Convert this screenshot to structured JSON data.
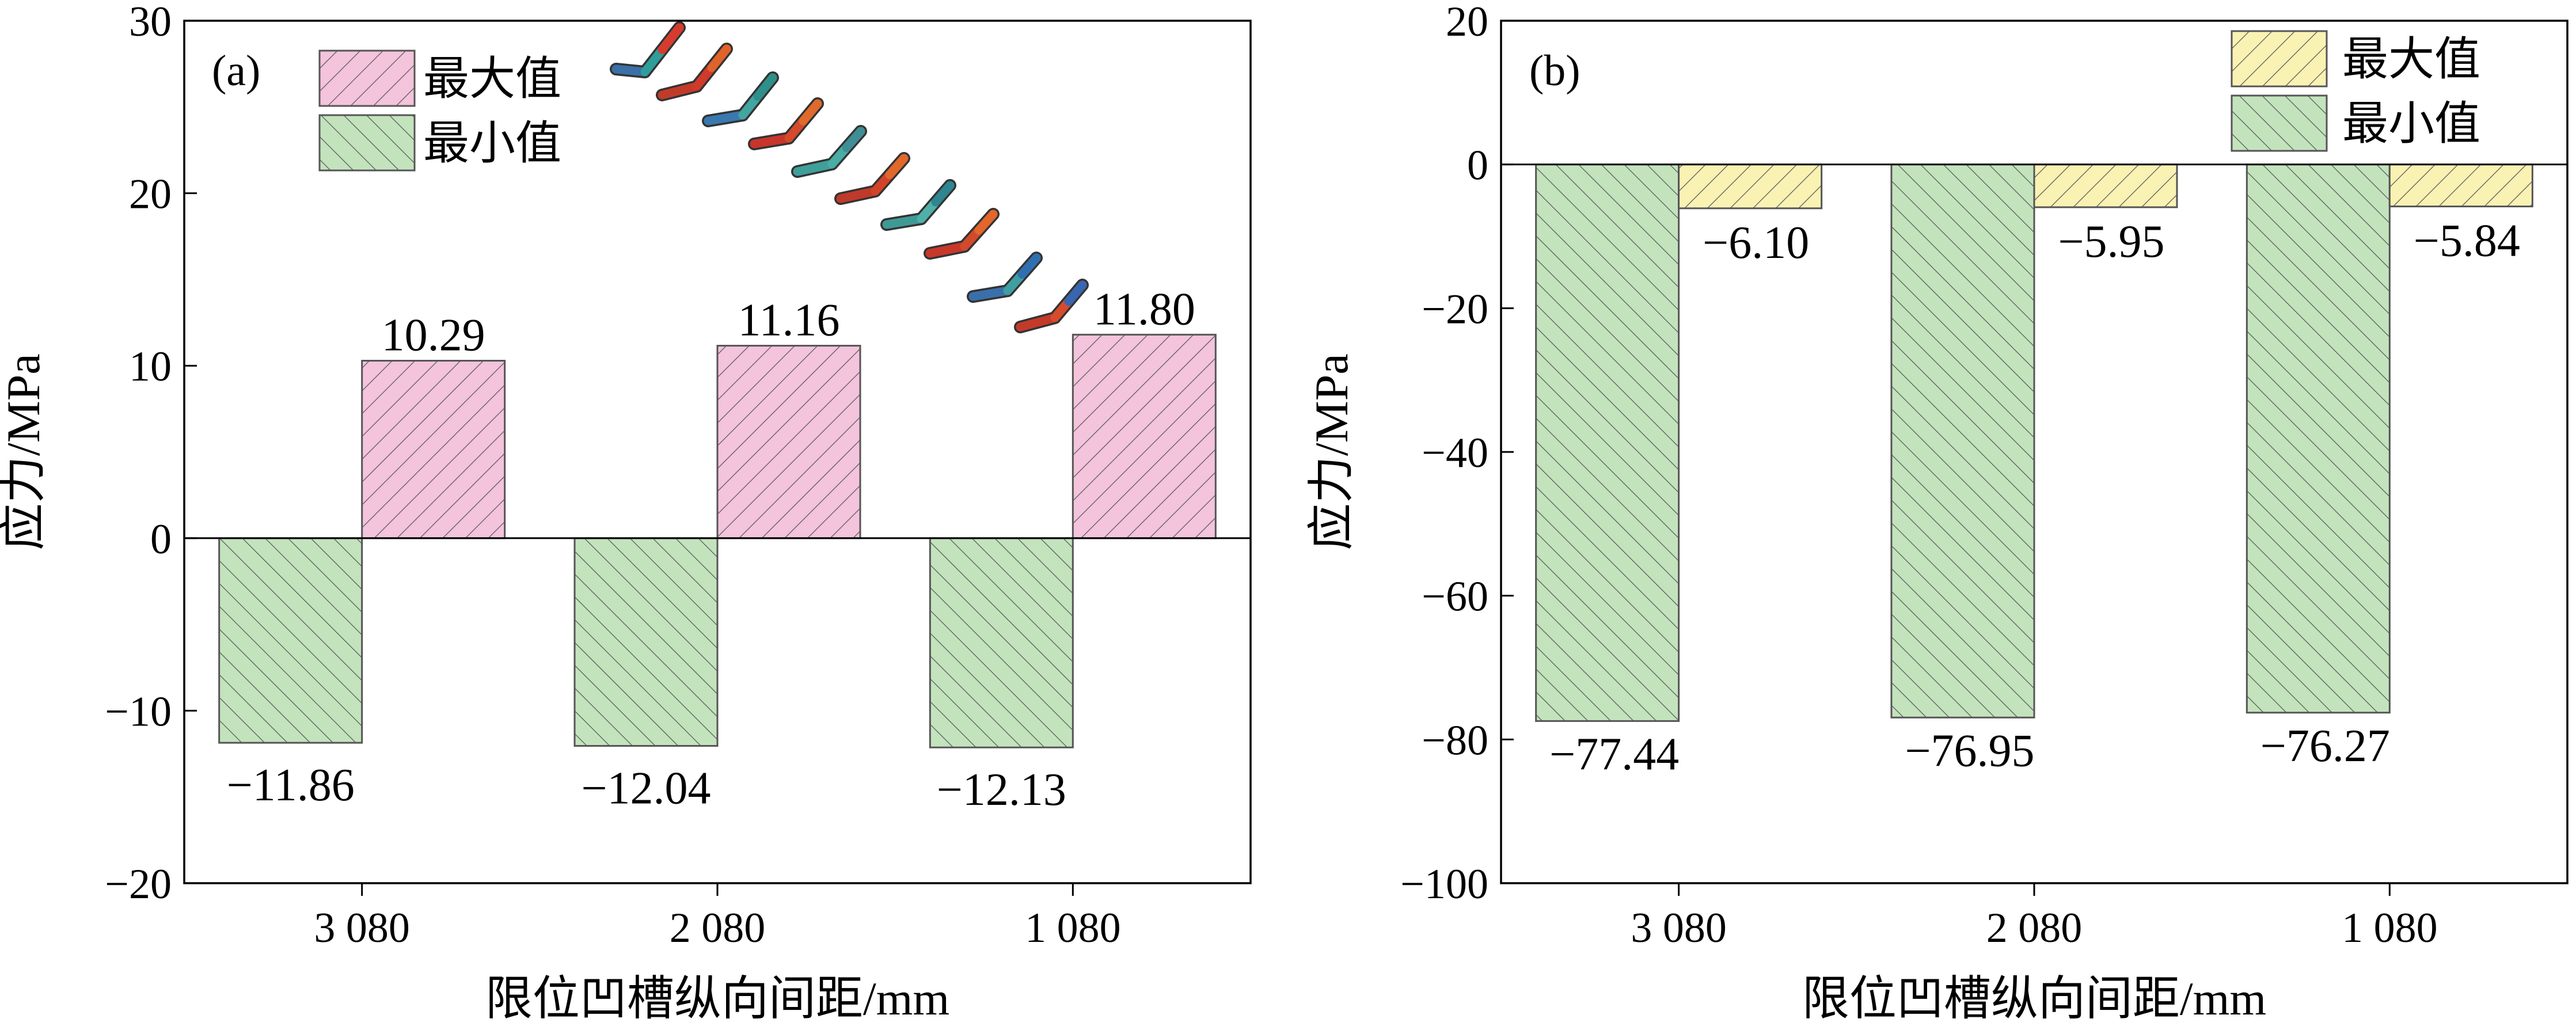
{
  "colors": {
    "pink_fill": "#f4c3dc",
    "green_fill": "#c3e3bd",
    "yellow_fill": "#faf2b3",
    "hatch": "#5b5b5b",
    "axis": "#000000"
  },
  "chart_data": [
    {
      "panel": "(a)",
      "type": "bar",
      "categories": [
        "3 080",
        "2 080",
        "1 080"
      ],
      "series": [
        {
          "name": "最小值",
          "values": [
            -11.86,
            -12.04,
            -12.13
          ],
          "labels": [
            "−11.86",
            "−12.04",
            "−12.13"
          ],
          "color": "#c3e3bd"
        },
        {
          "name": "最大值",
          "values": [
            10.29,
            11.16,
            11.8
          ],
          "labels": [
            "10.29",
            "11.16",
            "11.80"
          ],
          "color": "#f4c3dc"
        }
      ],
      "legend": [
        "最大值",
        "最小值"
      ],
      "legend_position": "top-left",
      "xlabel": "限位凹槽纵向间距/mm",
      "ylabel": "应力/MPa",
      "ylim": [
        -20,
        30
      ],
      "yticks": [
        -20,
        -10,
        0,
        10,
        20,
        30
      ],
      "ytick_labels": [
        "−20",
        "−10",
        "0",
        "10",
        "20",
        "30"
      ],
      "grid": false,
      "inset": "bent bar model images (decorative)"
    },
    {
      "panel": "(b)",
      "type": "bar",
      "categories": [
        "3 080",
        "2 080",
        "1 080"
      ],
      "series": [
        {
          "name": "最小值",
          "values": [
            -77.44,
            -76.95,
            -76.27
          ],
          "labels": [
            "−77.44",
            "−76.95",
            "−76.27"
          ],
          "color": "#c3e3bd"
        },
        {
          "name": "最大值",
          "values": [
            -6.1,
            -5.95,
            -5.84
          ],
          "labels": [
            "−6.10",
            "−5.95",
            "−5.84"
          ],
          "color": "#faf2b3"
        }
      ],
      "legend": [
        "最大值",
        "最小值"
      ],
      "legend_position": "top-right",
      "xlabel": "限位凹槽纵向间距/mm",
      "ylabel": "应力/MPa",
      "ylim": [
        -100,
        20
      ],
      "yticks": [
        -100,
        -80,
        -60,
        -40,
        -20,
        0,
        20
      ],
      "ytick_labels": [
        "−100",
        "−80",
        "−60",
        "−40",
        "−20",
        "0",
        "20"
      ],
      "grid": false
    }
  ]
}
